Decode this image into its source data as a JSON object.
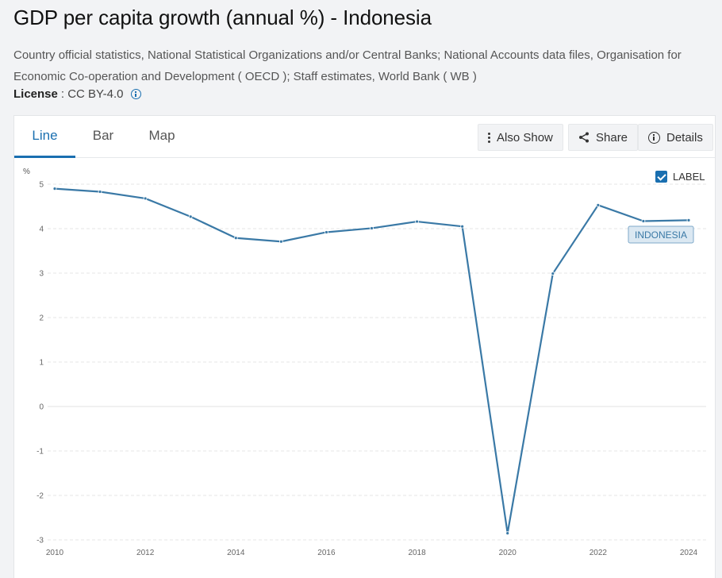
{
  "header": {
    "title": "GDP per capita growth (annual %) - Indonesia",
    "sources": "Country official statistics, National Statistical Organizations and/or Central Banks; National Accounts data files, Organisation for Economic Co-operation and Development ( OECD ); Staff estimates, World Bank ( WB )",
    "license_label": "License",
    "license_value": ": CC BY-4.0"
  },
  "tabs": [
    {
      "label": "Line",
      "active": true
    },
    {
      "label": "Bar",
      "active": false
    },
    {
      "label": "Map",
      "active": false
    }
  ],
  "toolbar": {
    "also_show": "Also Show",
    "share": "Share",
    "details": "Details"
  },
  "label_toggle": {
    "label": "LABEL",
    "checked": true
  },
  "colors": {
    "accent": "#1a6fb0",
    "series": "#3a79a6",
    "label_bg": "#dbe8f2",
    "label_border": "#7fa9c9",
    "label_text": "#3a79a6"
  },
  "chart_data": {
    "type": "line",
    "ylabel": "%",
    "xlabel": "",
    "ylim": [
      -3,
      5
    ],
    "yticks": [
      "5",
      "4",
      "3",
      "2",
      "1",
      "0",
      "-1",
      "-2",
      "-3"
    ],
    "xticks": [
      "2010",
      "2012",
      "2014",
      "2016",
      "2018",
      "2020",
      "2022",
      "2024"
    ],
    "x": [
      2010,
      2011,
      2012,
      2013,
      2014,
      2015,
      2016,
      2017,
      2018,
      2019,
      2020,
      2021,
      2022,
      2023,
      2024
    ],
    "series": [
      {
        "name": "INDONESIA",
        "values": [
          4.9,
          4.83,
          4.68,
          4.27,
          3.79,
          3.71,
          3.92,
          4.01,
          4.16,
          4.05,
          -2.85,
          2.99,
          4.53,
          4.17,
          4.19
        ]
      }
    ],
    "grid": true,
    "series_label_visible": true
  }
}
